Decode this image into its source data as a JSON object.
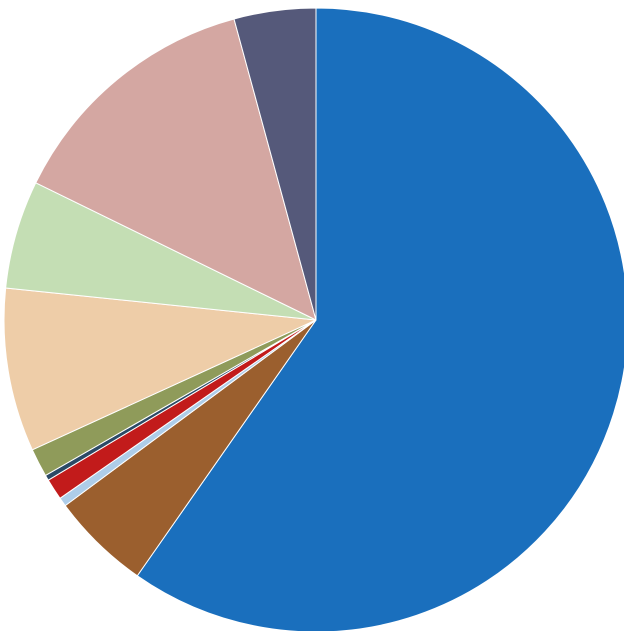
{
  "chart_data": {
    "type": "pie",
    "title": "",
    "start_angle_deg": 0,
    "direction": "clockwise",
    "series": [
      {
        "values": [
          64.9,
          5.6,
          0.5,
          1.2,
          0.3,
          1.6,
          9.2,
          6.1,
          14.7,
          4.6
        ],
        "colors": [
          "#1a6fbd",
          "#9b5f2e",
          "#aecde9",
          "#c21b1b",
          "#2b4a66",
          "#8f9b5a",
          "#eecda8",
          "#c4deb4",
          "#d4a7a2",
          "#55597a"
        ]
      }
    ]
  }
}
